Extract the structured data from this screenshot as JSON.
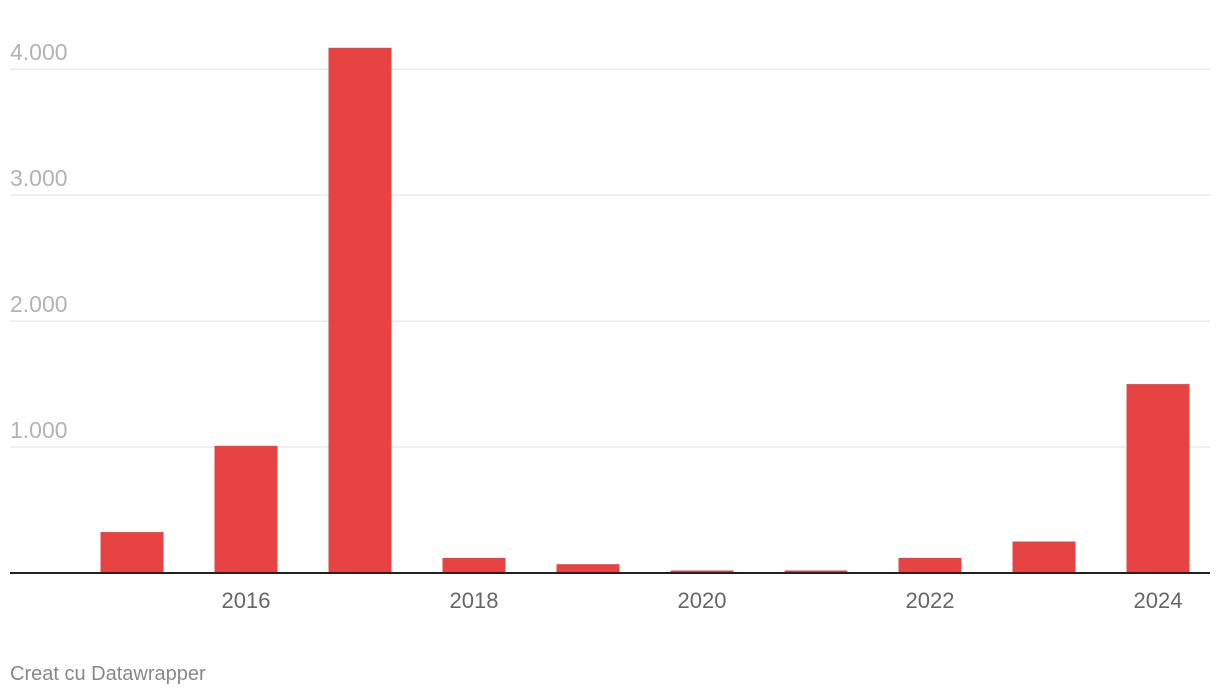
{
  "chart_data": {
    "type": "bar",
    "categories": [
      null,
      "2016",
      null,
      "2018",
      null,
      "2020",
      null,
      "2022",
      null,
      "2024"
    ],
    "values": [
      325,
      1010,
      4170,
      120,
      70,
      20,
      20,
      120,
      250,
      1500
    ],
    "color": "#e84343",
    "ylim": [
      0,
      4200
    ],
    "yticks": [
      {
        "value": 1000,
        "label": "1.000"
      },
      {
        "value": 2000,
        "label": "2.000"
      },
      {
        "value": 3000,
        "label": "3.000"
      },
      {
        "value": 4000,
        "label": "4.000"
      }
    ],
    "grid": true,
    "credit": "Creat cu Datawrapper"
  }
}
